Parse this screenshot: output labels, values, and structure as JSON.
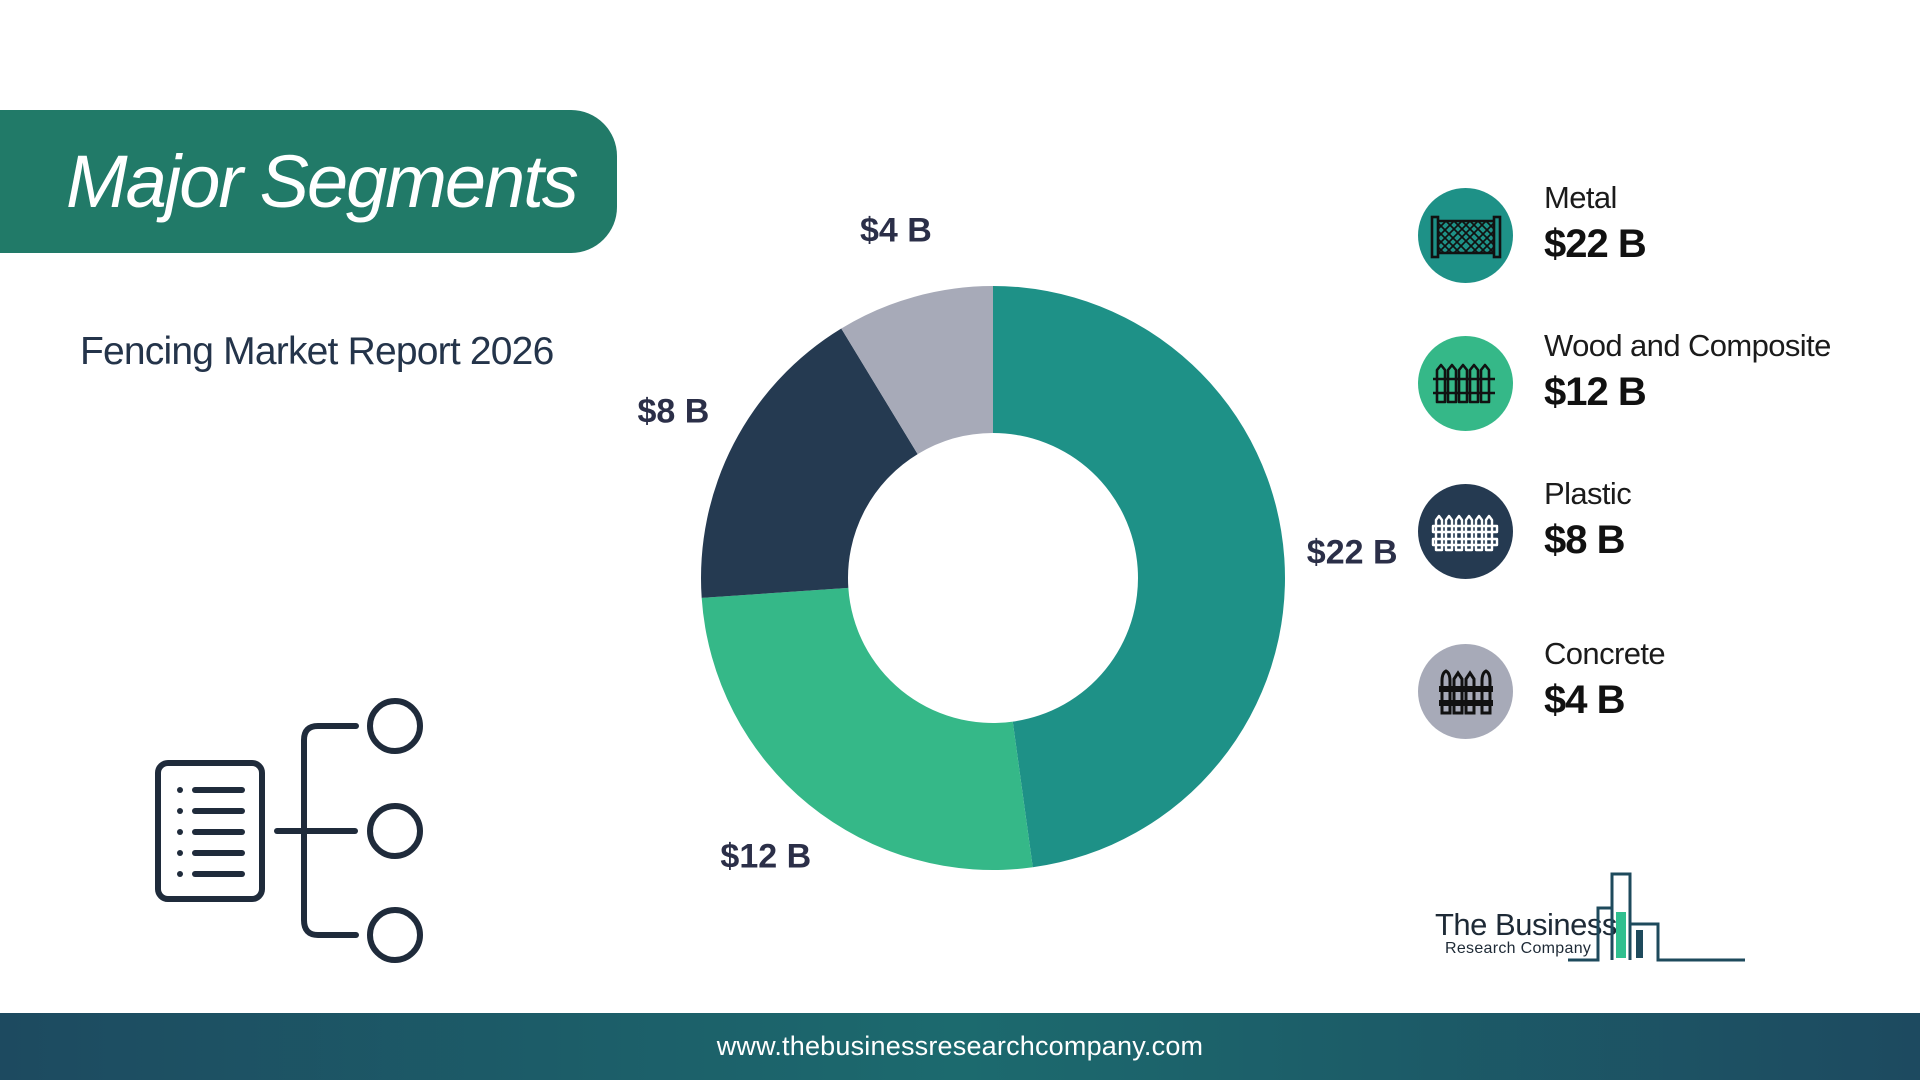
{
  "header": {
    "title": "Major Segments",
    "subtitle": "Fencing Market Report 2026"
  },
  "chart_data": {
    "type": "pie",
    "style": "donut",
    "title": "",
    "labels": [
      "Metal",
      "Wood and Composite",
      "Plastic",
      "Concrete"
    ],
    "values": [
      22,
      12,
      8,
      4
    ],
    "unit": "$ B",
    "value_labels": [
      "$22 B",
      "$12 B",
      "$8 B",
      "$4 B"
    ],
    "colors": [
      "#1e9187",
      "#35b888",
      "#253a51",
      "#a7aab8"
    ],
    "legend_position": "right"
  },
  "legend": {
    "items": [
      {
        "name": "Metal",
        "value": "$22 B",
        "color": "#1e9187",
        "icon": "chain-link-fence-icon"
      },
      {
        "name": "Wood and Composite",
        "value": "$12 B",
        "color": "#35b888",
        "icon": "wood-picket-fence-icon"
      },
      {
        "name": "Plastic",
        "value": "$8 B",
        "color": "#253a51",
        "icon": "plastic-fence-icon"
      },
      {
        "name": "Concrete",
        "value": "$4 B",
        "color": "#a7aab8",
        "icon": "concrete-fence-icon"
      }
    ]
  },
  "decor": {
    "segments_icon": "segments-tree-icon"
  },
  "logo": {
    "line1": "The Business",
    "line2": "Research Company"
  },
  "footer": {
    "url": "www.thebusinessresearchcompany.com"
  }
}
